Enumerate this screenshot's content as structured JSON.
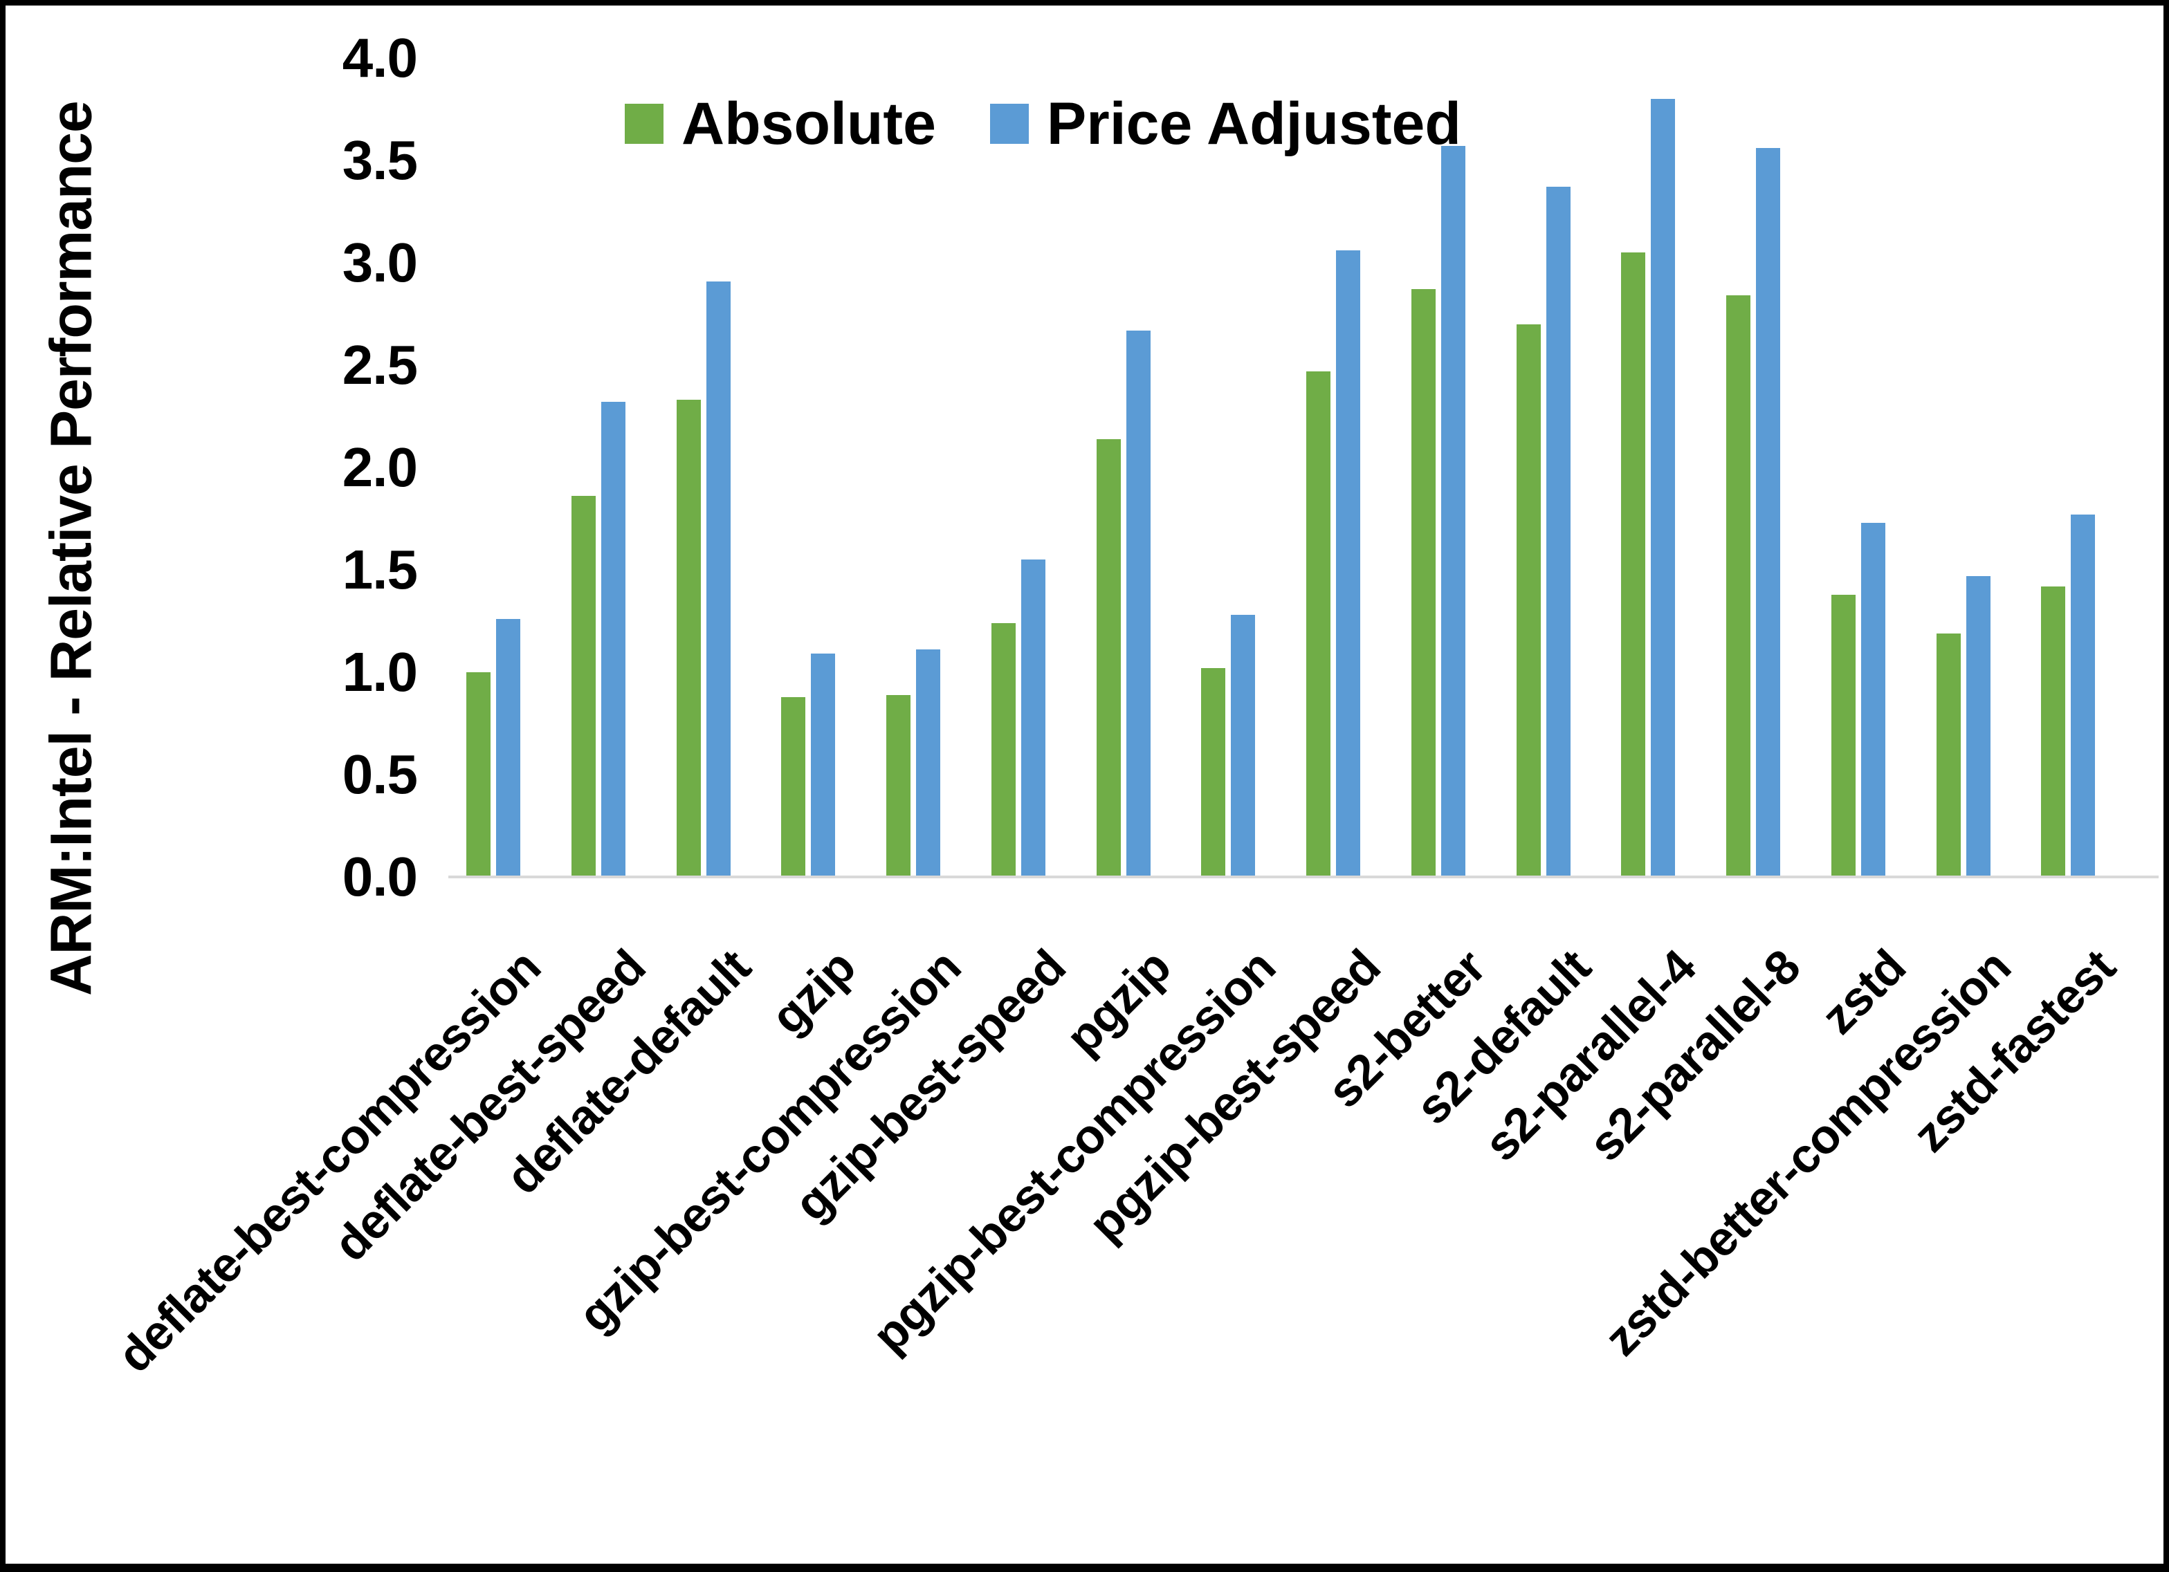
{
  "chart_data": {
    "type": "bar",
    "title": "",
    "xlabel": "",
    "ylabel": "ARM:Intel - Relative Performance",
    "ylim": [
      0.0,
      4.0
    ],
    "ytick_labels": [
      "0.0",
      "0.5",
      "1.0",
      "1.5",
      "2.0",
      "2.5",
      "3.0",
      "3.5",
      "4.0"
    ],
    "grid": false,
    "legend_position": "top-center",
    "axis_line_color": "#d9d9d9",
    "background_color": "#ffffff",
    "categories": [
      "deflate-best-compression",
      "deflate-best-speed",
      "deflate-default",
      "gzip",
      "gzip-best-compression",
      "gzip-best-speed",
      "pgzip",
      "pgzip-best-compression",
      "pgzip-best-speed",
      "s2-better",
      "s2-default",
      "s2-parallel-4",
      "s2-parallel-8",
      "zstd",
      "zstd-better-compression",
      "zstd-fastest"
    ],
    "series": [
      {
        "name": "Absolute",
        "color": "#70ad47",
        "values": [
          1.0,
          1.86,
          2.33,
          0.88,
          0.89,
          1.24,
          2.14,
          1.02,
          2.47,
          2.87,
          2.7,
          3.05,
          2.84,
          1.38,
          1.19,
          1.42
        ]
      },
      {
        "name": "Price Adjusted",
        "color": "#5b9bd5",
        "values": [
          1.26,
          2.32,
          2.91,
          1.09,
          1.11,
          1.55,
          2.67,
          1.28,
          3.06,
          3.57,
          3.37,
          3.8,
          3.56,
          1.73,
          1.47,
          1.77
        ]
      }
    ]
  }
}
